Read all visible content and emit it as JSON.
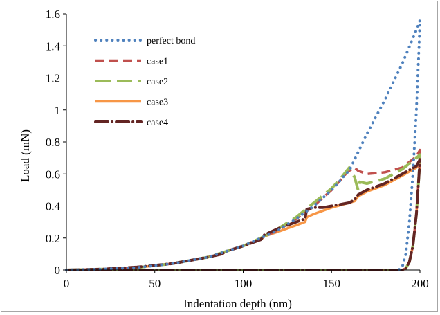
{
  "chart_data": {
    "type": "line",
    "xlabel": "Indentation depth (nm)",
    "ylabel": "Load (mN)",
    "xlim": [
      0,
      200
    ],
    "ylim": [
      0,
      1.6
    ],
    "x_ticks": [
      "0",
      "50",
      "100",
      "150",
      "200"
    ],
    "y_ticks": [
      "0",
      "0.2",
      "0.4",
      "0.6",
      "0.8",
      "1",
      "1.2",
      "1.4",
      "1.6"
    ],
    "grid": false,
    "legend_position": "top-left",
    "series": [
      {
        "name": "perfect bond",
        "color": "#4f81bd",
        "dash": "dotted",
        "x": [
          0,
          20,
          40,
          60,
          80,
          90,
          100,
          110,
          120,
          130,
          140,
          150,
          155,
          158,
          160,
          170,
          180,
          190,
          195,
          198,
          200,
          199.5,
          198,
          196,
          194,
          192,
          190,
          188
        ],
        "y": [
          0,
          0.005,
          0.015,
          0.04,
          0.08,
          0.115,
          0.15,
          0.2,
          0.25,
          0.32,
          0.4,
          0.5,
          0.56,
          0.6,
          0.62,
          0.85,
          1.06,
          1.29,
          1.42,
          1.5,
          1.56,
          1.4,
          1.0,
          0.6,
          0.3,
          0.1,
          0.02,
          0
        ]
      },
      {
        "name": "case1",
        "color": "#c0504d",
        "dash": "dashed",
        "x": [
          0,
          20,
          40,
          60,
          80,
          90,
          100,
          110,
          120,
          130,
          140,
          150,
          155,
          158,
          160,
          163,
          165,
          170,
          180,
          190,
          198,
          200,
          199.5,
          198,
          196,
          194,
          192,
          190,
          175,
          150,
          100,
          50,
          0
        ],
        "y": [
          0,
          0.005,
          0.015,
          0.04,
          0.08,
          0.115,
          0.15,
          0.2,
          0.25,
          0.32,
          0.4,
          0.5,
          0.56,
          0.6,
          0.62,
          0.64,
          0.62,
          0.6,
          0.61,
          0.64,
          0.71,
          0.75,
          0.6,
          0.35,
          0.15,
          0.05,
          0.01,
          0,
          0,
          0,
          0,
          0,
          0
        ]
      },
      {
        "name": "case2",
        "color": "#9bbb59",
        "dash": "long-dash",
        "x": [
          0,
          20,
          40,
          60,
          80,
          90,
          100,
          110,
          120,
          130,
          140,
          150,
          155,
          160,
          163,
          165,
          166,
          170,
          180,
          190,
          198,
          200,
          199.5,
          198,
          196,
          194,
          192,
          190,
          175,
          150,
          100,
          50,
          0
        ],
        "y": [
          0,
          0.005,
          0.015,
          0.04,
          0.08,
          0.115,
          0.15,
          0.2,
          0.26,
          0.33,
          0.42,
          0.51,
          0.57,
          0.64,
          0.58,
          0.5,
          0.55,
          0.54,
          0.57,
          0.63,
          0.7,
          0.72,
          0.6,
          0.35,
          0.15,
          0.05,
          0.01,
          0,
          0,
          0,
          0,
          0,
          0
        ]
      },
      {
        "name": "case3",
        "color": "#f79646",
        "dash": "solid",
        "x": [
          0,
          20,
          40,
          60,
          80,
          88,
          90,
          100,
          110,
          112,
          120,
          130,
          135,
          136,
          140,
          150,
          160,
          163,
          165,
          170,
          180,
          190,
          198,
          200,
          199.5,
          198,
          196,
          194,
          192,
          190,
          175,
          150,
          100,
          50,
          0
        ],
        "y": [
          0,
          0.005,
          0.015,
          0.04,
          0.08,
          0.1,
          0.115,
          0.15,
          0.19,
          0.21,
          0.24,
          0.28,
          0.3,
          0.33,
          0.35,
          0.39,
          0.42,
          0.43,
          0.46,
          0.49,
          0.53,
          0.59,
          0.64,
          0.67,
          0.6,
          0.35,
          0.15,
          0.05,
          0.01,
          0,
          0,
          0,
          0,
          0,
          0
        ]
      },
      {
        "name": "case4",
        "color": "#632523",
        "dash": "dash-dot",
        "x": [
          0,
          20,
          40,
          60,
          80,
          88,
          90,
          100,
          110,
          112,
          120,
          130,
          135,
          136,
          140,
          143,
          145,
          150,
          160,
          163,
          165,
          170,
          180,
          190,
          198,
          200,
          199.5,
          198,
          196,
          194,
          192,
          190,
          175,
          150,
          100,
          50,
          0
        ],
        "y": [
          0,
          0.005,
          0.018,
          0.04,
          0.08,
          0.1,
          0.115,
          0.15,
          0.19,
          0.22,
          0.26,
          0.3,
          0.32,
          0.38,
          0.39,
          0.39,
          0.39,
          0.4,
          0.42,
          0.44,
          0.47,
          0.5,
          0.54,
          0.6,
          0.65,
          0.69,
          0.6,
          0.35,
          0.15,
          0.05,
          0.01,
          0,
          0,
          0,
          0,
          0,
          0
        ]
      }
    ]
  }
}
